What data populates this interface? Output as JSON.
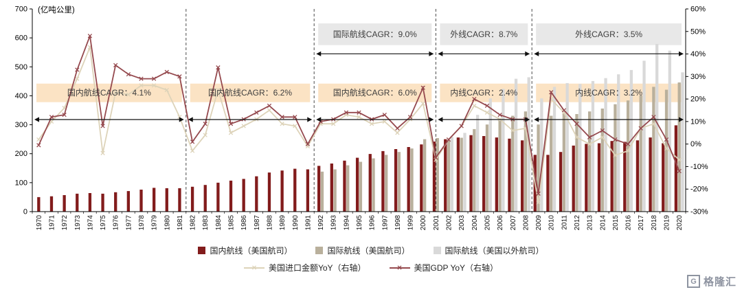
{
  "chart_data": {
    "type": "combo",
    "left_axis": {
      "title": "(亿吨公里)",
      "min": 0,
      "max": 700,
      "ticks": [
        0,
        100,
        200,
        300,
        400,
        500,
        600,
        700
      ]
    },
    "right_axis": {
      "min": -30,
      "max": 60,
      "tick_values": [
        60,
        50,
        40,
        30,
        20,
        10,
        0,
        -10,
        -20,
        -30
      ],
      "tick_labels": [
        "60%",
        "50%",
        "40%",
        "30%",
        "20%",
        "10%",
        "0%",
        "-10%",
        "-20%",
        "-30%"
      ]
    },
    "years": [
      1970,
      1971,
      1972,
      1973,
      1974,
      1975,
      1976,
      1977,
      1978,
      1979,
      1980,
      1981,
      1982,
      1983,
      1984,
      1985,
      1986,
      1987,
      1988,
      1989,
      1990,
      1991,
      1992,
      1993,
      1994,
      1995,
      1996,
      1997,
      1998,
      1999,
      2000,
      2001,
      2002,
      2003,
      2004,
      2005,
      2006,
      2007,
      2008,
      2009,
      2010,
      2011,
      2012,
      2013,
      2014,
      2015,
      2016,
      2017,
      2018,
      2019,
      2020
    ],
    "series": [
      {
        "name": "国内航线（美国航司）",
        "type": "bar",
        "axis": "left",
        "color": "#821c1c",
        "values": [
          50,
          53,
          57,
          62,
          64,
          62,
          67,
          71,
          76,
          82,
          81,
          81,
          86,
          92,
          100,
          107,
          113,
          122,
          135,
          142,
          148,
          146,
          158,
          166,
          176,
          186,
          199,
          209,
          216,
          223,
          232,
          242,
          250,
          256,
          264,
          261,
          256,
          252,
          246,
          196,
          196,
          206,
          228,
          234,
          236,
          244,
          241,
          246,
          256,
          236,
          298
        ]
      },
      {
        "name": "国际航线（美国航司）",
        "type": "bar",
        "axis": "left",
        "color": "#b9b09c",
        "values": [
          null,
          null,
          null,
          null,
          null,
          null,
          null,
          null,
          null,
          null,
          null,
          null,
          null,
          null,
          null,
          null,
          null,
          null,
          null,
          null,
          null,
          null,
          138,
          146,
          160,
          172,
          184,
          196,
          206,
          218,
          250,
          254,
          247,
          255,
          285,
          301,
          314,
          331,
          346,
          301,
          331,
          341,
          337,
          346,
          356,
          371,
          384,
          401,
          431,
          421,
          446
        ]
      },
      {
        "name": "国际航线（美国以外航司）",
        "type": "bar",
        "axis": "left",
        "color": "#d9d9d9",
        "values": [
          null,
          null,
          null,
          null,
          null,
          null,
          null,
          null,
          null,
          null,
          null,
          null,
          null,
          null,
          null,
          null,
          null,
          null,
          null,
          null,
          null,
          null,
          null,
          null,
          null,
          null,
          null,
          null,
          null,
          null,
          null,
          null,
          258,
          272,
          334,
          391,
          424,
          459,
          464,
          391,
          431,
          444,
          441,
          451,
          461,
          474,
          489,
          521,
          579,
          556,
          481
        ]
      },
      {
        "name": "美国进口金额YoY（右轴）",
        "type": "line",
        "axis": "right",
        "color": "#ddd3b9",
        "values": [
          2,
          10,
          16,
          29,
          43,
          -4,
          23,
          22,
          26,
          26,
          24,
          12,
          -3,
          4,
          24,
          5,
          8,
          11,
          15,
          9,
          8,
          -1,
          9,
          9,
          13,
          12,
          9,
          10,
          5,
          11,
          18,
          -7,
          2,
          8,
          17,
          14,
          11,
          6,
          7,
          -26,
          20,
          14,
          3,
          0,
          3,
          -5,
          -3,
          7,
          9,
          -2,
          -7
        ]
      },
      {
        "name": "美国GDP YoY（右轴）",
        "type": "line",
        "axis": "right",
        "color": "#95494e",
        "values": [
          -0.5,
          12,
          13,
          33,
          48,
          8,
          35,
          31,
          29,
          29,
          32,
          30,
          1,
          9,
          34,
          9,
          11,
          14,
          17,
          12,
          12,
          0,
          10,
          11,
          14,
          14,
          11,
          13,
          7,
          12,
          25,
          -6,
          2,
          8,
          20,
          17,
          13,
          11,
          11,
          -22,
          23,
          15,
          9,
          3,
          6,
          2,
          0,
          7,
          12,
          2,
          -12
        ]
      }
    ],
    "dividers_slot_index": [
      12,
      22,
      31.5,
      39
    ],
    "annotation_styles": {
      "inner": {
        "band_fill": "#fbe3c4",
        "band_v": [
          378,
          442
        ],
        "arrow_v": 318
      },
      "outer": {
        "band_fill": "#e8e8e8",
        "band_v": [
          575,
          650
        ],
        "arrow_v": 545
      }
    },
    "annotations": [
      {
        "label": "国内航线CAGR：4.1%",
        "kind": "inner",
        "from": 0,
        "to": 12
      },
      {
        "label": "国内航线CAGR：6.2%",
        "kind": "inner",
        "from": 12,
        "to": 22
      },
      {
        "label": "国内航线CAGR：6.0%",
        "kind": "inner",
        "from": 22,
        "to": 31.5
      },
      {
        "label": "国际航线CAGR：9.0%",
        "kind": "outer",
        "from": 22,
        "to": 31.5
      },
      {
        "label": "内线CAGR：2.4%",
        "kind": "inner",
        "from": 31.5,
        "to": 39
      },
      {
        "label": "外线CAGR：8.7%",
        "kind": "outer",
        "from": 31.5,
        "to": 39
      },
      {
        "label": "内线CAGR：3.2%",
        "kind": "inner",
        "from": 39,
        "to": 51
      },
      {
        "label": "外线CAGR：3.5%",
        "kind": "outer",
        "from": 39,
        "to": 51
      }
    ]
  },
  "watermark": {
    "logo_letter": "G",
    "text": "格隆汇"
  }
}
